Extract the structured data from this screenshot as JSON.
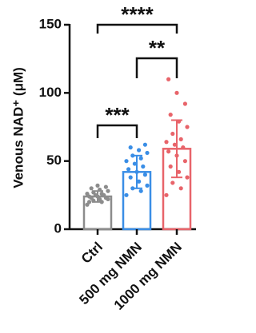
{
  "chart_data": {
    "type": "bar",
    "y_label": "Venous NAD⁺ (μM)",
    "categories": [
      "Ctrl",
      "500 mg NMN",
      "1000 mg NMN"
    ],
    "values": [
      24,
      42,
      59
    ],
    "errors": [
      4,
      12,
      21
    ],
    "colors": [
      "#8c8c8c",
      "#3a8ee6",
      "#e8646a"
    ],
    "points": [
      [
        18,
        20,
        21,
        22,
        22,
        23,
        23,
        24,
        24,
        25,
        25,
        26,
        26,
        27,
        28,
        29,
        30,
        31,
        32,
        20
      ],
      [
        25,
        28,
        30,
        32,
        35,
        38,
        40,
        42,
        44,
        46,
        48,
        50,
        52,
        54,
        56,
        58,
        60,
        62
      ],
      [
        25,
        30,
        34,
        38,
        42,
        46,
        50,
        54,
        57,
        60,
        62,
        64,
        66,
        70,
        75,
        79,
        84,
        92,
        100,
        110
      ]
    ],
    "comparisons": [
      {
        "label": "***",
        "pair": [
          "Ctrl",
          "500 mg NMN"
        ]
      },
      {
        "label": "**",
        "pair": [
          "500 mg NMN",
          "1000 mg NMN"
        ]
      },
      {
        "label": "****",
        "pair": [
          "Ctrl",
          "1000 mg NMN"
        ]
      }
    ],
    "ylim": [
      0,
      150
    ],
    "yticks": [
      0,
      50,
      100,
      150
    ]
  }
}
